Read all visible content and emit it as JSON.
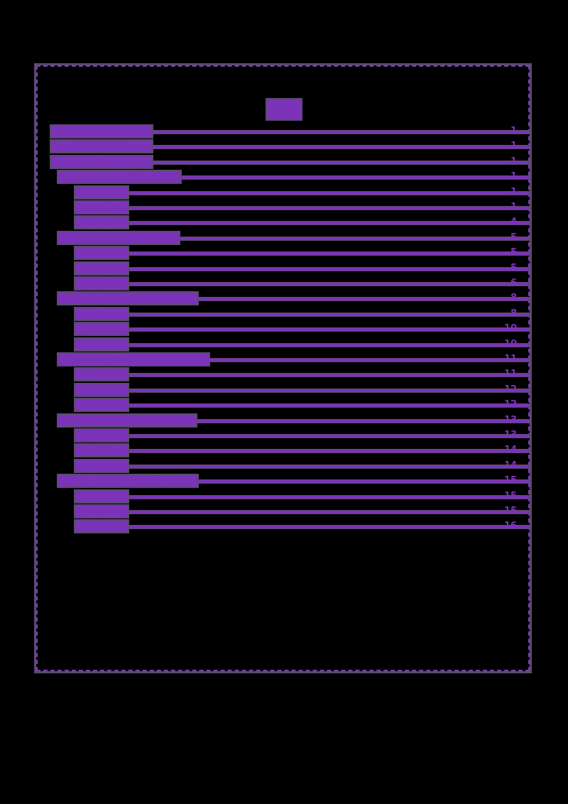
{
  "document": {
    "title": "目录",
    "colors": {
      "background": "#000000",
      "text": "#7b33b8",
      "outline": "#5b4a6e"
    },
    "entries": [
      {
        "level": 0,
        "label": "一、课程基本信息",
        "page": "1"
      },
      {
        "level": 0,
        "label": "二、课程教学目标",
        "page": "1"
      },
      {
        "level": 0,
        "label": "三、课程教学内容",
        "page": "1"
      },
      {
        "level": 1,
        "label": "任务一 认识基础知识",
        "page": "1"
      },
      {
        "level": 2,
        "label": "【教学目标】",
        "page": "1"
      },
      {
        "level": 2,
        "label": "【重点难点】",
        "page": "1"
      },
      {
        "level": 2,
        "label": "【教学过程】",
        "page": "4"
      },
      {
        "level": 1,
        "label": "任务二 掌握基本操作",
        "page": "5"
      },
      {
        "level": 2,
        "label": "【教学目标】",
        "page": "5"
      },
      {
        "level": 2,
        "label": "【重点难点】",
        "page": "5"
      },
      {
        "level": 2,
        "label": "【教学过程】",
        "page": "6"
      },
      {
        "level": 1,
        "label": "任务三 综合应用实践训练",
        "page": "8"
      },
      {
        "level": 2,
        "label": "【教学目标】",
        "page": "8"
      },
      {
        "level": 2,
        "label": "【重点难点】",
        "page": "10"
      },
      {
        "level": 2,
        "label": "【教学过程】",
        "page": "10"
      },
      {
        "level": 1,
        "label": "任务四 项目设计与开发实现",
        "page": "11"
      },
      {
        "level": 2,
        "label": "【教学目标】",
        "page": "11"
      },
      {
        "level": 2,
        "label": "【重点难点】",
        "page": "12"
      },
      {
        "level": 2,
        "label": "【教学过程】",
        "page": "12"
      },
      {
        "level": 1,
        "label": "任务五 系统测试与优化调整",
        "page": "13"
      },
      {
        "level": 2,
        "label": "【教学目标】",
        "page": "13"
      },
      {
        "level": 2,
        "label": "【重点难点】",
        "page": "14"
      },
      {
        "level": 2,
        "label": "【教学过程】",
        "page": "14"
      },
      {
        "level": 1,
        "label": "任务六 总结评价与拓展提升",
        "page": "15"
      },
      {
        "level": 2,
        "label": "【教学目标】",
        "page": "15"
      },
      {
        "level": 2,
        "label": "【重点难点】",
        "page": "15"
      },
      {
        "level": 2,
        "label": "【教学过程】",
        "page": "16"
      }
    ]
  }
}
